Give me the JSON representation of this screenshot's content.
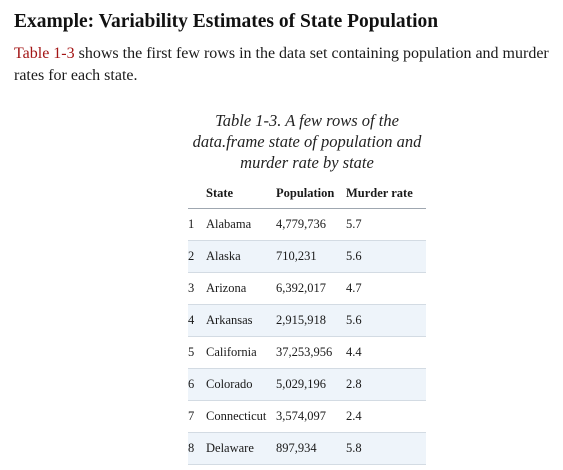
{
  "heading": "Example: Variability Estimates of State Population",
  "intro": {
    "link": "Table 1-3",
    "text": " shows the first few rows in the data set containing population and murder rates for each state."
  },
  "caption": "Table 1-3. A few rows of the data.frame state of population and murder rate by state",
  "table": {
    "columns": [
      "State",
      "Population",
      "Murder rate"
    ],
    "rows": [
      {
        "index": "1",
        "state": "Alabama",
        "population": "4,779,736",
        "murder_rate": "5.7"
      },
      {
        "index": "2",
        "state": "Alaska",
        "population": "710,231",
        "murder_rate": "5.6"
      },
      {
        "index": "3",
        "state": "Arizona",
        "population": "6,392,017",
        "murder_rate": "4.7"
      },
      {
        "index": "4",
        "state": "Arkansas",
        "population": "2,915,918",
        "murder_rate": "5.6"
      },
      {
        "index": "5",
        "state": "California",
        "population": "37,253,956",
        "murder_rate": "4.4"
      },
      {
        "index": "6",
        "state": "Colorado",
        "population": "5,029,196",
        "murder_rate": "2.8"
      },
      {
        "index": "7",
        "state": "Connecticut",
        "population": "3,574,097",
        "murder_rate": "2.4"
      },
      {
        "index": "8",
        "state": "Delaware",
        "population": "897,934",
        "murder_rate": "5.8"
      }
    ]
  },
  "colors": {
    "link": "#a31515",
    "row_alt": "#eef4fa",
    "rule": "#d3dbe3"
  }
}
